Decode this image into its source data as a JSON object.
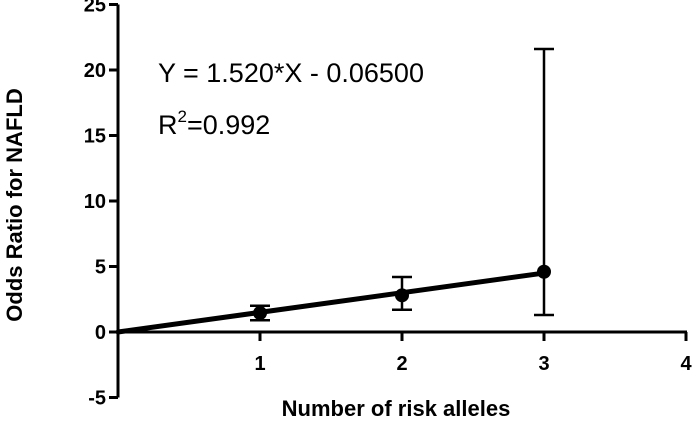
{
  "chart_data": {
    "type": "line",
    "xlabel": "Number of risk alleles",
    "ylabel": "Odds Ratio for NAFLD",
    "xlim": [
      0,
      4
    ],
    "ylim": [
      -5,
      25
    ],
    "x_ticks": [
      "1",
      "2",
      "3",
      "4"
    ],
    "y_ticks": [
      "-5",
      "0",
      "5",
      "10",
      "15",
      "20",
      "25"
    ],
    "grid": false,
    "points": [
      {
        "x": 1,
        "y": 1.45,
        "err_low": 0.9,
        "err_high": 2.0
      },
      {
        "x": 2,
        "y": 2.8,
        "err_low": 1.7,
        "err_high": 4.2
      },
      {
        "x": 3,
        "y": 4.6,
        "err_low": 1.3,
        "err_high": 21.6
      }
    ],
    "fit_line": {
      "x": [
        0,
        3
      ],
      "y": [
        0,
        4.5
      ]
    },
    "annotations": {
      "equation": "Y = 1.520*X - 0.06500",
      "r2_prefix": "R",
      "r2_sup": "2",
      "r2_value": "=0.992"
    }
  }
}
